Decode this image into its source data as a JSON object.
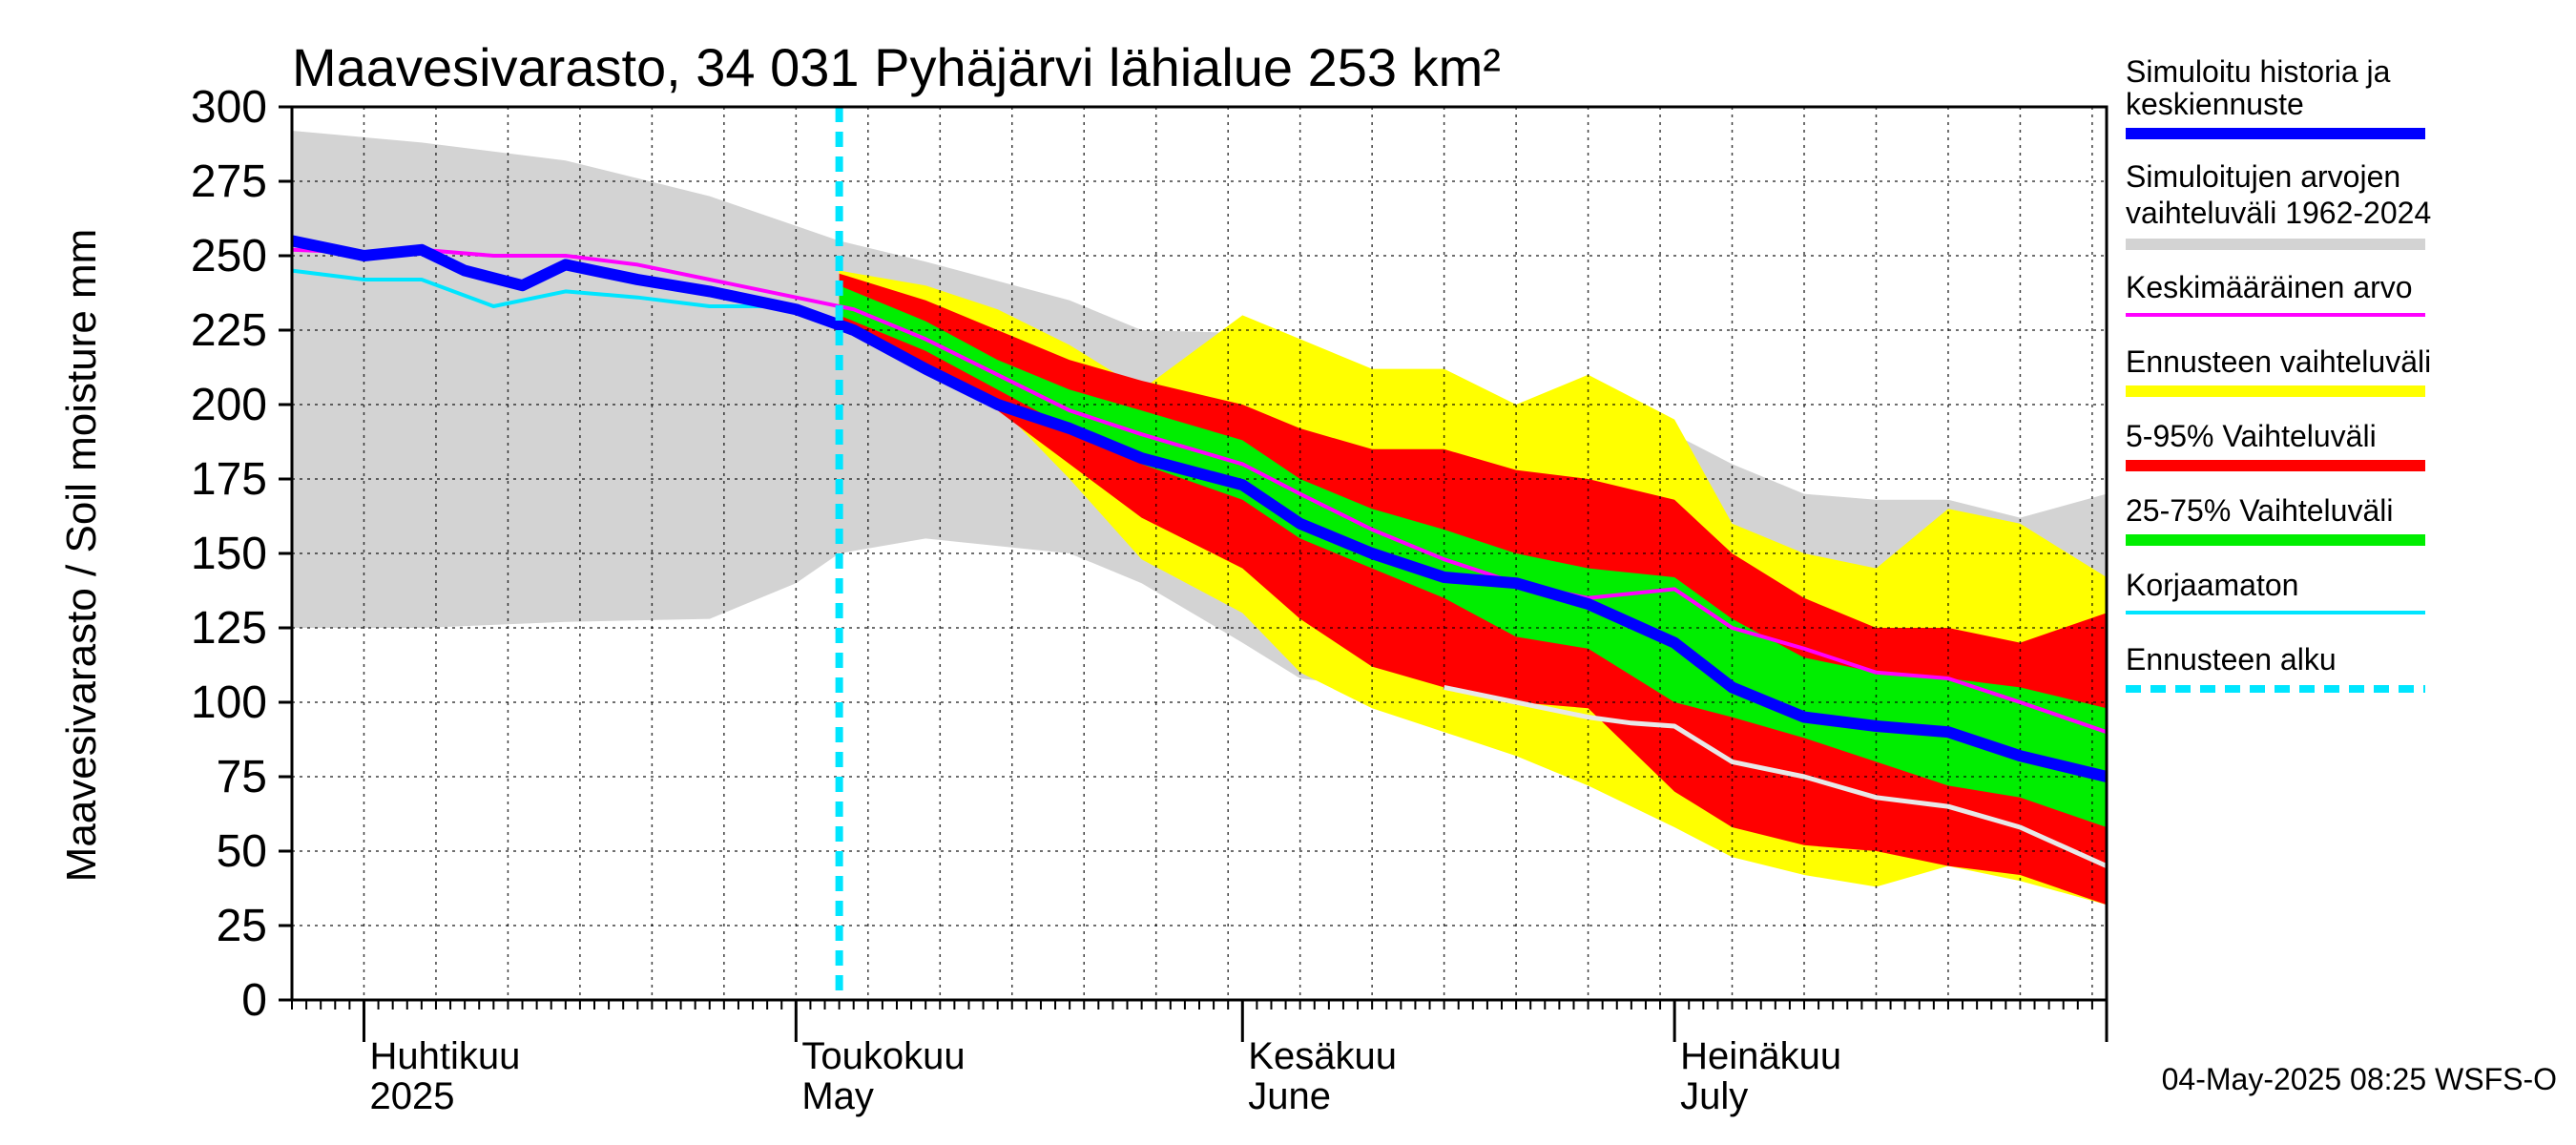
{
  "chart_data": {
    "type": "area",
    "title": "Maavesivarasto, 34 031 Pyhäjärvi lähialue 253 km²",
    "ylabel": "Maavesivarasto / Soil moisture   mm",
    "ylim": [
      0,
      300
    ],
    "yticks": [
      0,
      25,
      50,
      75,
      100,
      125,
      150,
      175,
      200,
      225,
      250,
      275,
      300
    ],
    "xlim": [
      "2025-03-27",
      "2025-07-31"
    ],
    "grid": true,
    "legend_position": "right",
    "month_labels": [
      {
        "date": "2025-04-01",
        "fi": "Huhtikuu",
        "en": "2025"
      },
      {
        "date": "2025-05-01",
        "fi": "Toukokuu",
        "en": "May"
      },
      {
        "date": "2025-06-01",
        "fi": "Kesäkuu",
        "en": "June"
      },
      {
        "date": "2025-07-01",
        "fi": "Heinäkuu",
        "en": "July"
      }
    ],
    "forecast_start": "2025-05-04",
    "series": [
      {
        "name": "Simuloitujen arvojen vaihteluväli 1962-2024",
        "kind": "band",
        "color": "#d3d3d3",
        "x": [
          "2025-03-27",
          "2025-04-05",
          "2025-04-15",
          "2025-04-25",
          "2025-05-01",
          "2025-05-04",
          "2025-05-10",
          "2025-05-20",
          "2025-05-25",
          "2025-06-01",
          "2025-06-05",
          "2025-06-10",
          "2025-06-15",
          "2025-06-20",
          "2025-06-25",
          "2025-07-01",
          "2025-07-05",
          "2025-07-10",
          "2025-07-15",
          "2025-07-20",
          "2025-07-25",
          "2025-07-31"
        ],
        "upper": [
          292,
          288,
          282,
          270,
          260,
          255,
          248,
          235,
          225,
          224,
          218,
          210,
          200,
          200,
          196,
          190,
          180,
          170,
          168,
          168,
          162,
          170
        ],
        "lower": [
          125,
          125,
          127,
          128,
          140,
          150,
          155,
          150,
          140,
          120,
          108,
          105,
          105,
          103,
          100,
          95,
          85,
          75,
          70,
          68,
          60,
          52
        ]
      },
      {
        "name": "Ennusteen vaihteluväli",
        "kind": "band",
        "color": "#ffff00",
        "x": [
          "2025-05-04",
          "2025-05-10",
          "2025-05-15",
          "2025-05-20",
          "2025-05-25",
          "2025-06-01",
          "2025-06-05",
          "2025-06-10",
          "2025-06-15",
          "2025-06-20",
          "2025-06-25",
          "2025-07-01",
          "2025-07-05",
          "2025-07-10",
          "2025-07-15",
          "2025-07-20",
          "2025-07-25",
          "2025-07-31"
        ],
        "upper": [
          245,
          240,
          232,
          220,
          205,
          230,
          222,
          212,
          212,
          200,
          210,
          195,
          160,
          150,
          145,
          165,
          160,
          142
        ],
        "lower": [
          225,
          218,
          200,
          175,
          148,
          130,
          110,
          98,
          90,
          82,
          72,
          58,
          48,
          42,
          38,
          45,
          40,
          32
        ]
      },
      {
        "name": "5-95% Vaihteluväli",
        "kind": "band",
        "color": "#ff0000",
        "x": [
          "2025-05-04",
          "2025-05-10",
          "2025-05-15",
          "2025-05-20",
          "2025-05-25",
          "2025-06-01",
          "2025-06-05",
          "2025-06-10",
          "2025-06-15",
          "2025-06-20",
          "2025-06-25",
          "2025-07-01",
          "2025-07-05",
          "2025-07-10",
          "2025-07-15",
          "2025-07-20",
          "2025-07-25",
          "2025-07-31"
        ],
        "upper": [
          244,
          235,
          225,
          215,
          208,
          200,
          192,
          185,
          185,
          178,
          175,
          168,
          150,
          135,
          125,
          125,
          120,
          130
        ],
        "lower": [
          226,
          212,
          198,
          180,
          162,
          145,
          128,
          112,
          105,
          100,
          98,
          70,
          58,
          52,
          50,
          45,
          42,
          32
        ]
      },
      {
        "name": "25-75% Vaihteluväli",
        "kind": "band",
        "color": "#00ee00",
        "x": [
          "2025-05-04",
          "2025-05-10",
          "2025-05-15",
          "2025-05-20",
          "2025-05-25",
          "2025-06-01",
          "2025-06-05",
          "2025-06-10",
          "2025-06-15",
          "2025-06-20",
          "2025-06-25",
          "2025-07-01",
          "2025-07-05",
          "2025-07-10",
          "2025-07-15",
          "2025-07-20",
          "2025-07-25",
          "2025-07-31"
        ],
        "upper": [
          240,
          228,
          215,
          205,
          198,
          188,
          175,
          165,
          158,
          150,
          145,
          142,
          128,
          115,
          110,
          108,
          105,
          98
        ],
        "lower": [
          230,
          218,
          205,
          192,
          180,
          168,
          155,
          145,
          135,
          122,
          118,
          100,
          95,
          88,
          80,
          72,
          68,
          58
        ]
      },
      {
        "name": "Keskimääräinen arvo",
        "kind": "line",
        "color": "#ff00ff",
        "x": [
          "2025-03-27",
          "2025-04-01",
          "2025-04-05",
          "2025-04-10",
          "2025-04-15",
          "2025-04-20",
          "2025-04-25",
          "2025-05-01",
          "2025-05-05",
          "2025-05-10",
          "2025-05-15",
          "2025-05-20",
          "2025-05-25",
          "2025-06-01",
          "2025-06-05",
          "2025-06-10",
          "2025-06-15",
          "2025-06-20",
          "2025-06-25",
          "2025-07-01",
          "2025-07-05",
          "2025-07-10",
          "2025-07-15",
          "2025-07-20",
          "2025-07-25",
          "2025-07-31"
        ],
        "y": [
          252,
          251,
          252,
          250,
          250,
          247,
          242,
          236,
          232,
          222,
          210,
          198,
          190,
          180,
          170,
          158,
          148,
          140,
          135,
          138,
          125,
          118,
          110,
          108,
          100,
          90
        ]
      },
      {
        "name": "Korjaamaton",
        "kind": "line",
        "color": "#00e5ff",
        "x": [
          "2025-03-27",
          "2025-04-01",
          "2025-04-05",
          "2025-04-10",
          "2025-04-15",
          "2025-04-20",
          "2025-04-25",
          "2025-04-29"
        ],
        "y": [
          245,
          242,
          242,
          233,
          238,
          236,
          233,
          233
        ]
      },
      {
        "name": "Simuloitu historia ja keskiennuste",
        "kind": "line",
        "color": "#0000ff",
        "x": [
          "2025-03-27",
          "2025-04-01",
          "2025-04-05",
          "2025-04-08",
          "2025-04-12",
          "2025-04-15",
          "2025-04-20",
          "2025-04-25",
          "2025-05-01",
          "2025-05-05",
          "2025-05-10",
          "2025-05-15",
          "2025-05-20",
          "2025-05-25",
          "2025-06-01",
          "2025-06-05",
          "2025-06-10",
          "2025-06-15",
          "2025-06-20",
          "2025-06-25",
          "2025-07-01",
          "2025-07-05",
          "2025-07-10",
          "2025-07-15",
          "2025-07-20",
          "2025-07-25",
          "2025-07-31"
        ],
        "y": [
          255,
          250,
          252,
          245,
          240,
          247,
          242,
          238,
          232,
          225,
          212,
          200,
          192,
          182,
          173,
          160,
          150,
          142,
          140,
          133,
          120,
          105,
          95,
          92,
          90,
          82,
          75
        ]
      },
      {
        "name": "",
        "kind": "line",
        "color": "#e8e8e8",
        "x": [
          "2025-06-15",
          "2025-06-20",
          "2025-06-25",
          "2025-06-28",
          "2025-07-01",
          "2025-07-05",
          "2025-07-10",
          "2025-07-15",
          "2025-07-20",
          "2025-07-25",
          "2025-07-31"
        ],
        "y": [
          105,
          100,
          95,
          93,
          92,
          80,
          75,
          68,
          65,
          58,
          45
        ]
      }
    ]
  },
  "legend": [
    {
      "label": "Simuloitu historia ja keskiennuste",
      "color": "#0000ff",
      "style": "thick"
    },
    {
      "label": "Simuloitujen arvojen vaihteluväli 1962-2024",
      "color": "#d3d3d3",
      "style": "thick"
    },
    {
      "label": "Keskimääräinen arvo",
      "color": "#ff00ff",
      "style": "thin"
    },
    {
      "label": "Ennusteen vaihteluväli",
      "color": "#ffff00",
      "style": "thick"
    },
    {
      "label": "5-95% Vaihteluväli",
      "color": "#ff0000",
      "style": "thick"
    },
    {
      "label": "25-75% Vaihteluväli",
      "color": "#00ee00",
      "style": "thick"
    },
    {
      "label": "Korjaamaton",
      "color": "#00e5ff",
      "style": "thin"
    },
    {
      "label": "Ennusteen alku",
      "color": "#00e5ff",
      "style": "dashed"
    }
  ],
  "footer": "04-May-2025 08:25 WSFS-O"
}
